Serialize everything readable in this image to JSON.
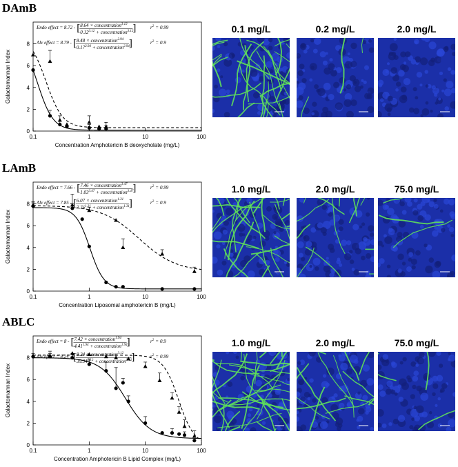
{
  "formula": {
    "equals": "=",
    "minus": "-",
    "times_var": "× concentration",
    "plus_var": "+ concentration",
    "r": "r",
    "r_exp": 2
  },
  "chart_data": [
    {
      "type": "line",
      "panel_label": "DAmB",
      "x_label": "Concentration Amphotericin B deoxycholate (mg/L)",
      "y_label": "Galactomannan Index",
      "log_x": true,
      "xlim": [
        0.1,
        100
      ],
      "xticks": [
        0.1,
        1,
        10,
        100
      ],
      "ylim": [
        0,
        10
      ],
      "yticks": [
        0,
        2,
        4,
        6,
        8
      ],
      "images": [
        "0.1 mg/L",
        "0.2 mg/L",
        "2.0 mg/L"
      ],
      "series": [
        {
          "name": "Endo effect",
          "marker": "circle",
          "dashed": false,
          "color": "#000000",
          "x": [
            0.1,
            0.2,
            0.3,
            0.4,
            1,
            1.5,
            2
          ],
          "values": [
            5.6,
            1.4,
            0.6,
            0.4,
            0.3,
            0.2,
            0.2
          ],
          "errors": [
            null,
            0.5,
            0.3,
            null,
            0.3,
            null,
            0.3
          ],
          "e0": 8.72,
          "emax": 8.64,
          "ec50": 0.12,
          "hill": 3.12,
          "r2": 0.99
        },
        {
          "name": "Alv effect",
          "marker": "triangle",
          "dashed": true,
          "color": "#000000",
          "x": [
            0.1,
            0.2,
            0.3,
            0.4,
            1,
            1.5,
            2
          ],
          "values": [
            7.0,
            6.4,
            1.0,
            0.6,
            0.8,
            0.4,
            0.4
          ],
          "errors": [
            null,
            1.0,
            0.4,
            null,
            0.6,
            null,
            0.4
          ],
          "e0": 8.79,
          "emax": 8.48,
          "ec50": 0.17,
          "hill": 2.94,
          "r2": 0.9
        }
      ]
    },
    {
      "type": "line",
      "panel_label": "LAmB",
      "x_label": "Concentration Liposomal amphotericin B (mg/L)",
      "y_label": "Galactomannan Index",
      "log_x": true,
      "xlim": [
        0.1,
        100
      ],
      "xticks": [
        0.1,
        1,
        10,
        100
      ],
      "ylim": [
        0,
        10
      ],
      "yticks": [
        0,
        2,
        4,
        6,
        8
      ],
      "images": [
        "1.0 mg/L",
        "2.0 mg/L",
        "75.0 mg/L"
      ],
      "series": [
        {
          "name": "Endo effect",
          "marker": "circle",
          "dashed": false,
          "color": "#000000",
          "x": [
            0.1,
            0.5,
            0.75,
            1,
            2,
            3,
            4,
            20,
            75
          ],
          "values": [
            7.8,
            7.6,
            6.6,
            4.1,
            0.8,
            0.4,
            0.4,
            0.2,
            0.2
          ],
          "errors": [
            0.3,
            0.4,
            null,
            null,
            null,
            null,
            null,
            null,
            null
          ],
          "e0": 7.66,
          "emax": 7.46,
          "ec50": 1.03,
          "hill": 3.47,
          "r2": 0.99
        },
        {
          "name": "Alv effect",
          "marker": "triangle",
          "dashed": true,
          "color": "#000000",
          "x": [
            0.1,
            0.5,
            1,
            3,
            4,
            20,
            75
          ],
          "values": [
            7.9,
            7.9,
            7.4,
            6.5,
            4.0,
            3.4,
            1.8
          ],
          "errors": [
            0.3,
            1.0,
            0.3,
            null,
            0.8,
            0.4,
            0.4
          ],
          "e0": 7.85,
          "emax": 6.07,
          "ec50": 7.76,
          "hill": 1.31,
          "r2": 0.9
        }
      ]
    },
    {
      "type": "line",
      "panel_label": "ABLC",
      "x_label": "Concentration Amphotericin B Lipid Complex (mg/L)",
      "y_label": "Galactomannan Index",
      "log_x": true,
      "xlim": [
        0.1,
        100
      ],
      "xticks": [
        0.1,
        1,
        10,
        100
      ],
      "ylim": [
        0,
        10
      ],
      "yticks": [
        0,
        2,
        4,
        6,
        8
      ],
      "images": [
        "1.0 mg/L",
        "2.0 mg/L",
        "75.0 mg/L"
      ],
      "series": [
        {
          "name": "Endo effect",
          "marker": "circle",
          "dashed": false,
          "color": "#000000",
          "x": [
            0.1,
            0.2,
            0.5,
            1,
            2,
            3,
            4,
            5,
            10,
            20,
            30,
            40,
            50,
            75
          ],
          "values": [
            8.1,
            8.1,
            8.0,
            7.4,
            6.8,
            5.2,
            5.7,
            4.0,
            2.0,
            1.1,
            1.1,
            1.0,
            0.9,
            0.4
          ],
          "errors": [
            0.3,
            0.3,
            0.4,
            0.5,
            0.8,
            1.9,
            0.4,
            0.5,
            0.6,
            null,
            0.4,
            null,
            0.3,
            null
          ],
          "e0": 8.0,
          "emax": 7.42,
          "ec50": 4.41,
          "hill": 1.94,
          "r2": 0.9
        },
        {
          "name": "Alv effect",
          "marker": "triangle",
          "dashed": true,
          "color": "#000000",
          "x": [
            0.1,
            0.2,
            0.5,
            1,
            2,
            3,
            5,
            10,
            18,
            30,
            40,
            50,
            75
          ],
          "values": [
            8.2,
            8.2,
            8.4,
            8.3,
            8.1,
            8.0,
            7.9,
            7.2,
            5.9,
            4.3,
            3.0,
            1.7,
            0.8
          ],
          "errors": [
            null,
            0.4,
            null,
            null,
            null,
            null,
            null,
            0.4,
            0.7,
            0.5,
            0.5,
            0.6,
            0.5
          ],
          "e0": 8.24,
          "emax": 8.24,
          "ec50": 39.34,
          "hill": 3.12,
          "r2": 0.99
        }
      ]
    }
  ]
}
